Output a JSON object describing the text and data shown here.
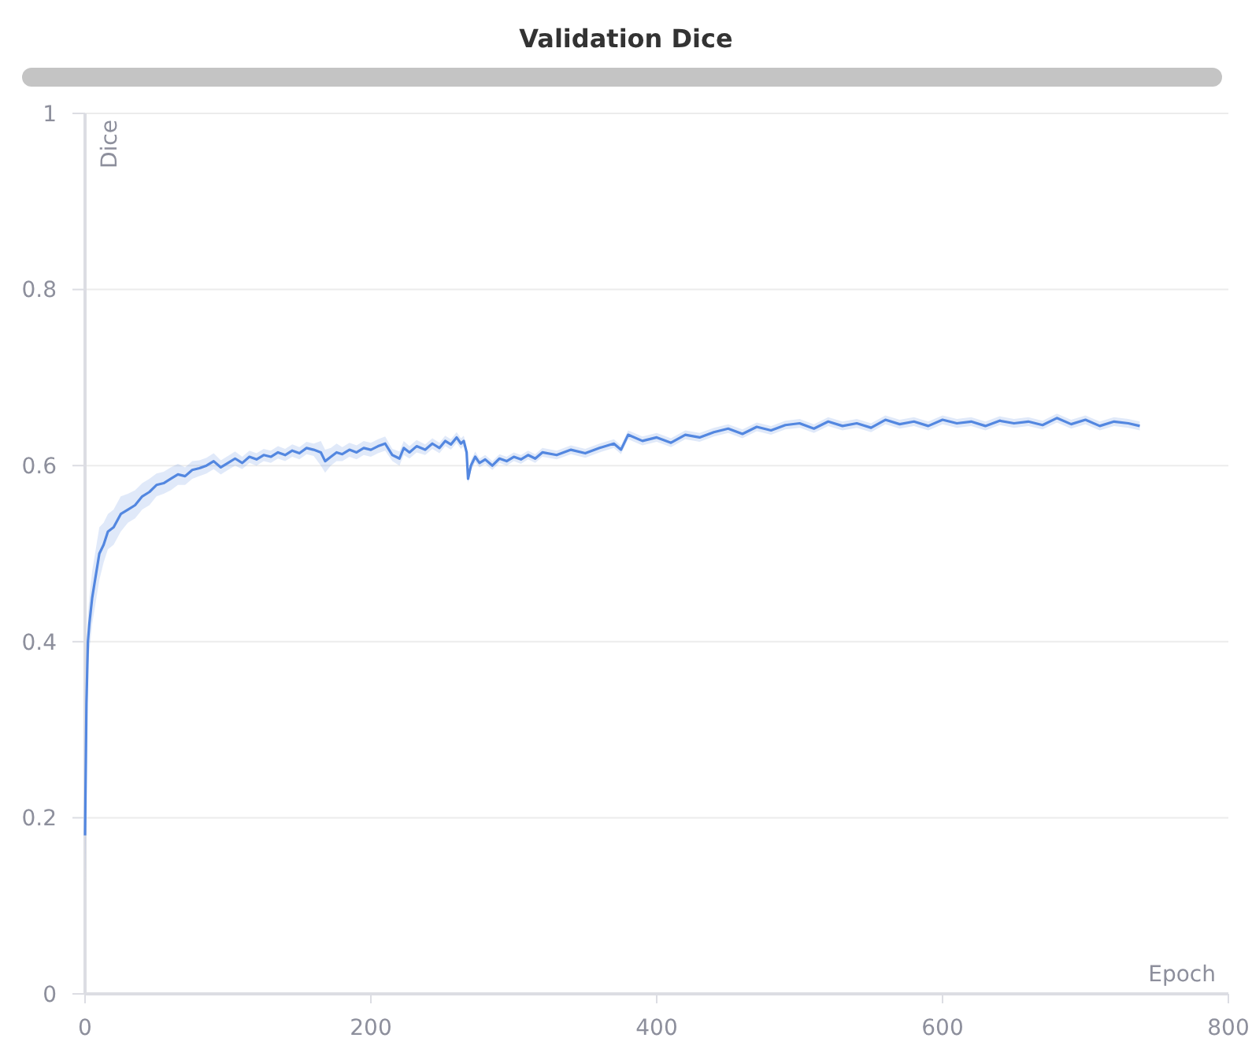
{
  "chart_data": {
    "type": "line",
    "title": "Validation Dice",
    "xlabel": "Epoch",
    "ylabel": "Dice",
    "xlim": [
      0,
      800
    ],
    "xticks": [
      0,
      200,
      400,
      600,
      800
    ],
    "ylim": [
      0,
      1
    ],
    "yticks": [
      0,
      0.2,
      0.4,
      0.6,
      0.8,
      1
    ],
    "grid": "y",
    "marker": "none",
    "line_style": "solid",
    "series": [
      {
        "color": "#5387e0",
        "x": [
          0,
          1,
          2,
          3,
          5,
          7,
          10,
          13,
          16,
          20,
          25,
          30,
          35,
          40,
          45,
          50,
          55,
          60,
          65,
          70,
          75,
          80,
          85,
          90,
          95,
          100,
          105,
          110,
          115,
          120,
          125,
          130,
          135,
          140,
          145,
          150,
          155,
          160,
          165,
          168,
          172,
          176,
          180,
          185,
          190,
          195,
          200,
          205,
          210,
          215,
          220,
          223,
          227,
          232,
          238,
          243,
          248,
          252,
          256,
          260,
          263,
          265,
          267,
          268,
          270,
          273,
          276,
          280,
          285,
          290,
          295,
          300,
          305,
          310,
          315,
          320,
          330,
          340,
          350,
          360,
          370,
          375,
          380,
          390,
          400,
          410,
          420,
          430,
          440,
          450,
          460,
          470,
          480,
          490,
          500,
          510,
          520,
          530,
          540,
          550,
          560,
          570,
          580,
          590,
          600,
          610,
          620,
          630,
          640,
          650,
          660,
          670,
          680,
          690,
          700,
          710,
          720,
          730,
          738
        ],
        "values": [
          0.18,
          0.33,
          0.4,
          0.42,
          0.45,
          0.47,
          0.5,
          0.51,
          0.525,
          0.53,
          0.545,
          0.55,
          0.555,
          0.565,
          0.57,
          0.578,
          0.58,
          0.585,
          0.59,
          0.588,
          0.595,
          0.597,
          0.6,
          0.605,
          0.598,
          0.603,
          0.608,
          0.603,
          0.61,
          0.607,
          0.612,
          0.61,
          0.615,
          0.612,
          0.617,
          0.614,
          0.62,
          0.618,
          0.615,
          0.605,
          0.61,
          0.615,
          0.613,
          0.618,
          0.615,
          0.62,
          0.618,
          0.622,
          0.625,
          0.612,
          0.608,
          0.62,
          0.615,
          0.622,
          0.618,
          0.625,
          0.62,
          0.628,
          0.624,
          0.632,
          0.625,
          0.628,
          0.615,
          0.585,
          0.6,
          0.61,
          0.603,
          0.607,
          0.6,
          0.608,
          0.605,
          0.61,
          0.607,
          0.612,
          0.608,
          0.615,
          0.612,
          0.618,
          0.614,
          0.62,
          0.625,
          0.618,
          0.635,
          0.628,
          0.632,
          0.626,
          0.635,
          0.632,
          0.638,
          0.642,
          0.636,
          0.644,
          0.64,
          0.646,
          0.648,
          0.642,
          0.65,
          0.645,
          0.648,
          0.643,
          0.652,
          0.647,
          0.65,
          0.645,
          0.652,
          0.648,
          0.65,
          0.645,
          0.651,
          0.648,
          0.65,
          0.646,
          0.654,
          0.647,
          0.652,
          0.645,
          0.65,
          0.648,
          0.645
        ],
        "lower": [
          0.12,
          0.28,
          0.37,
          0.39,
          0.42,
          0.44,
          0.47,
          0.49,
          0.505,
          0.51,
          0.525,
          0.535,
          0.54,
          0.55,
          0.555,
          0.565,
          0.568,
          0.572,
          0.578,
          0.578,
          0.585,
          0.588,
          0.591,
          0.596,
          0.59,
          0.595,
          0.6,
          0.596,
          0.603,
          0.6,
          0.605,
          0.603,
          0.608,
          0.605,
          0.61,
          0.607,
          0.613,
          0.611,
          0.6,
          0.592,
          0.6,
          0.605,
          0.605,
          0.61,
          0.607,
          0.612,
          0.61,
          0.614,
          0.617,
          0.605,
          0.6,
          0.612,
          0.608,
          0.615,
          0.612,
          0.619,
          0.614,
          0.622,
          0.618,
          0.626,
          0.619,
          0.622,
          0.609,
          0.58,
          0.594,
          0.604,
          0.598,
          0.602,
          0.595,
          0.603,
          0.6,
          0.605,
          0.602,
          0.607,
          0.603,
          0.61,
          0.607,
          0.613,
          0.609,
          0.615,
          0.62,
          0.613,
          0.63,
          0.623,
          0.627,
          0.621,
          0.63,
          0.627,
          0.633,
          0.637,
          0.631,
          0.639,
          0.635,
          0.641,
          0.643,
          0.637,
          0.645,
          0.64,
          0.643,
          0.638,
          0.647,
          0.642,
          0.645,
          0.64,
          0.647,
          0.643,
          0.645,
          0.64,
          0.646,
          0.643,
          0.645,
          0.641,
          0.649,
          0.642,
          0.647,
          0.64,
          0.645,
          0.643,
          0.64
        ],
        "upper": [
          0.24,
          0.38,
          0.43,
          0.45,
          0.48,
          0.5,
          0.53,
          0.535,
          0.545,
          0.55,
          0.565,
          0.568,
          0.572,
          0.58,
          0.585,
          0.591,
          0.593,
          0.598,
          0.602,
          0.598,
          0.605,
          0.606,
          0.609,
          0.614,
          0.606,
          0.611,
          0.616,
          0.61,
          0.617,
          0.614,
          0.619,
          0.617,
          0.622,
          0.619,
          0.624,
          0.621,
          0.627,
          0.625,
          0.628,
          0.618,
          0.62,
          0.625,
          0.621,
          0.626,
          0.623,
          0.628,
          0.626,
          0.63,
          0.633,
          0.619,
          0.616,
          0.628,
          0.622,
          0.629,
          0.624,
          0.631,
          0.626,
          0.634,
          0.63,
          0.638,
          0.631,
          0.634,
          0.621,
          0.59,
          0.606,
          0.616,
          0.608,
          0.612,
          0.605,
          0.613,
          0.61,
          0.615,
          0.612,
          0.617,
          0.613,
          0.62,
          0.617,
          0.623,
          0.619,
          0.625,
          0.63,
          0.623,
          0.64,
          0.633,
          0.637,
          0.631,
          0.64,
          0.637,
          0.643,
          0.647,
          0.641,
          0.649,
          0.645,
          0.651,
          0.653,
          0.647,
          0.655,
          0.65,
          0.653,
          0.648,
          0.657,
          0.652,
          0.655,
          0.65,
          0.657,
          0.653,
          0.655,
          0.65,
          0.656,
          0.653,
          0.655,
          0.651,
          0.659,
          0.652,
          0.657,
          0.65,
          0.655,
          0.653,
          0.65
        ]
      }
    ]
  }
}
